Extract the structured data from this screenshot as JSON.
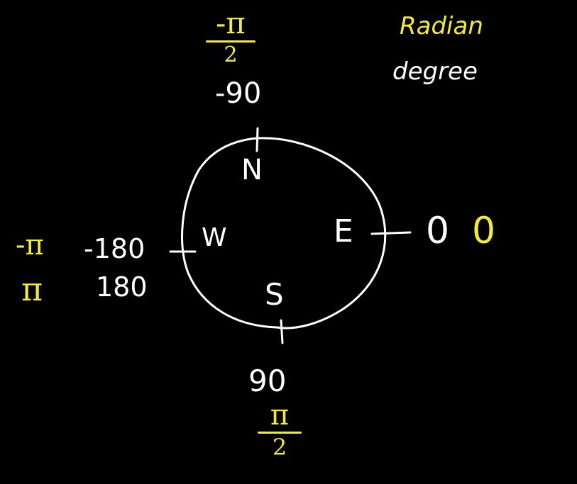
{
  "legend": {
    "radian_label": "Radian",
    "degree_label": "degree",
    "radian_color": "#f4ea3a",
    "degree_color": "#ffffff"
  },
  "compass": {
    "north": "N",
    "east": "E",
    "south": "S",
    "west": "W"
  },
  "north_values": {
    "degree": "-90",
    "radian_num": "-π",
    "radian_den": "2"
  },
  "east_values": {
    "degree": "0",
    "radian": "0"
  },
  "south_values": {
    "degree": "90",
    "radian_num": "π",
    "radian_den": "2"
  },
  "west_values": {
    "degree_neg": "-180",
    "degree_pos": "180",
    "radian_neg": "-π",
    "radian_pos": "π"
  }
}
